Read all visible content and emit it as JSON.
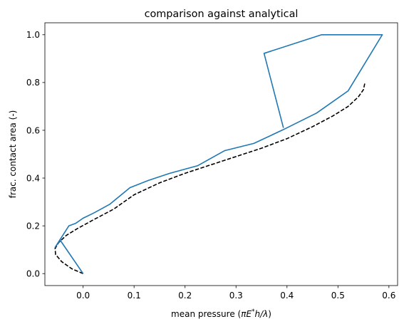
{
  "chart_data": {
    "type": "line",
    "title": "comparison against analytical",
    "xlabel": "mean pressure (πE*h/λ)",
    "ylabel": "frac. contact area (-)",
    "xlim": [
      -0.075,
      0.617
    ],
    "ylim": [
      -0.05,
      1.05
    ],
    "xticks": [
      0.0,
      0.1,
      0.2,
      0.3,
      0.4,
      0.5,
      0.6
    ],
    "xtick_labels": [
      "0.0",
      "0.1",
      "0.2",
      "0.3",
      "0.4",
      "0.5",
      "0.6"
    ],
    "yticks": [
      0.0,
      0.2,
      0.4,
      0.6,
      0.8,
      1.0
    ],
    "ytick_labels": [
      "0.0",
      "0.2",
      "0.4",
      "0.6",
      "0.8",
      "1.0"
    ],
    "grid": false,
    "series": [
      {
        "style": "solid",
        "color": "#1f77b4",
        "x": [
          0.0,
          -0.045,
          -0.055,
          -0.028,
          -0.015,
          0.0,
          0.022,
          0.052,
          0.092,
          0.128,
          0.17,
          0.225,
          0.278,
          0.335,
          0.392,
          0.458,
          0.52,
          0.587,
          0.468,
          0.355,
          0.393
        ],
        "y": [
          0.0,
          0.14,
          0.11,
          0.2,
          0.21,
          0.232,
          0.255,
          0.29,
          0.36,
          0.39,
          0.42,
          0.452,
          0.515,
          0.545,
          0.602,
          0.672,
          0.765,
          1.0,
          1.0,
          0.922,
          0.61
        ]
      },
      {
        "style": "dashed",
        "color": "#000000",
        "x": [
          0.0,
          -0.022,
          -0.042,
          -0.054,
          -0.055,
          -0.048,
          -0.033,
          -0.01,
          0.02,
          0.06,
          0.1,
          0.15,
          0.2,
          0.25,
          0.3,
          0.35,
          0.4,
          0.45,
          0.49,
          0.52,
          0.54,
          0.55,
          0.553
        ],
        "y": [
          0.0,
          0.02,
          0.05,
          0.08,
          0.105,
          0.13,
          0.16,
          0.19,
          0.225,
          0.27,
          0.33,
          0.38,
          0.42,
          0.455,
          0.49,
          0.525,
          0.565,
          0.615,
          0.66,
          0.7,
          0.74,
          0.77,
          0.8
        ]
      }
    ]
  }
}
